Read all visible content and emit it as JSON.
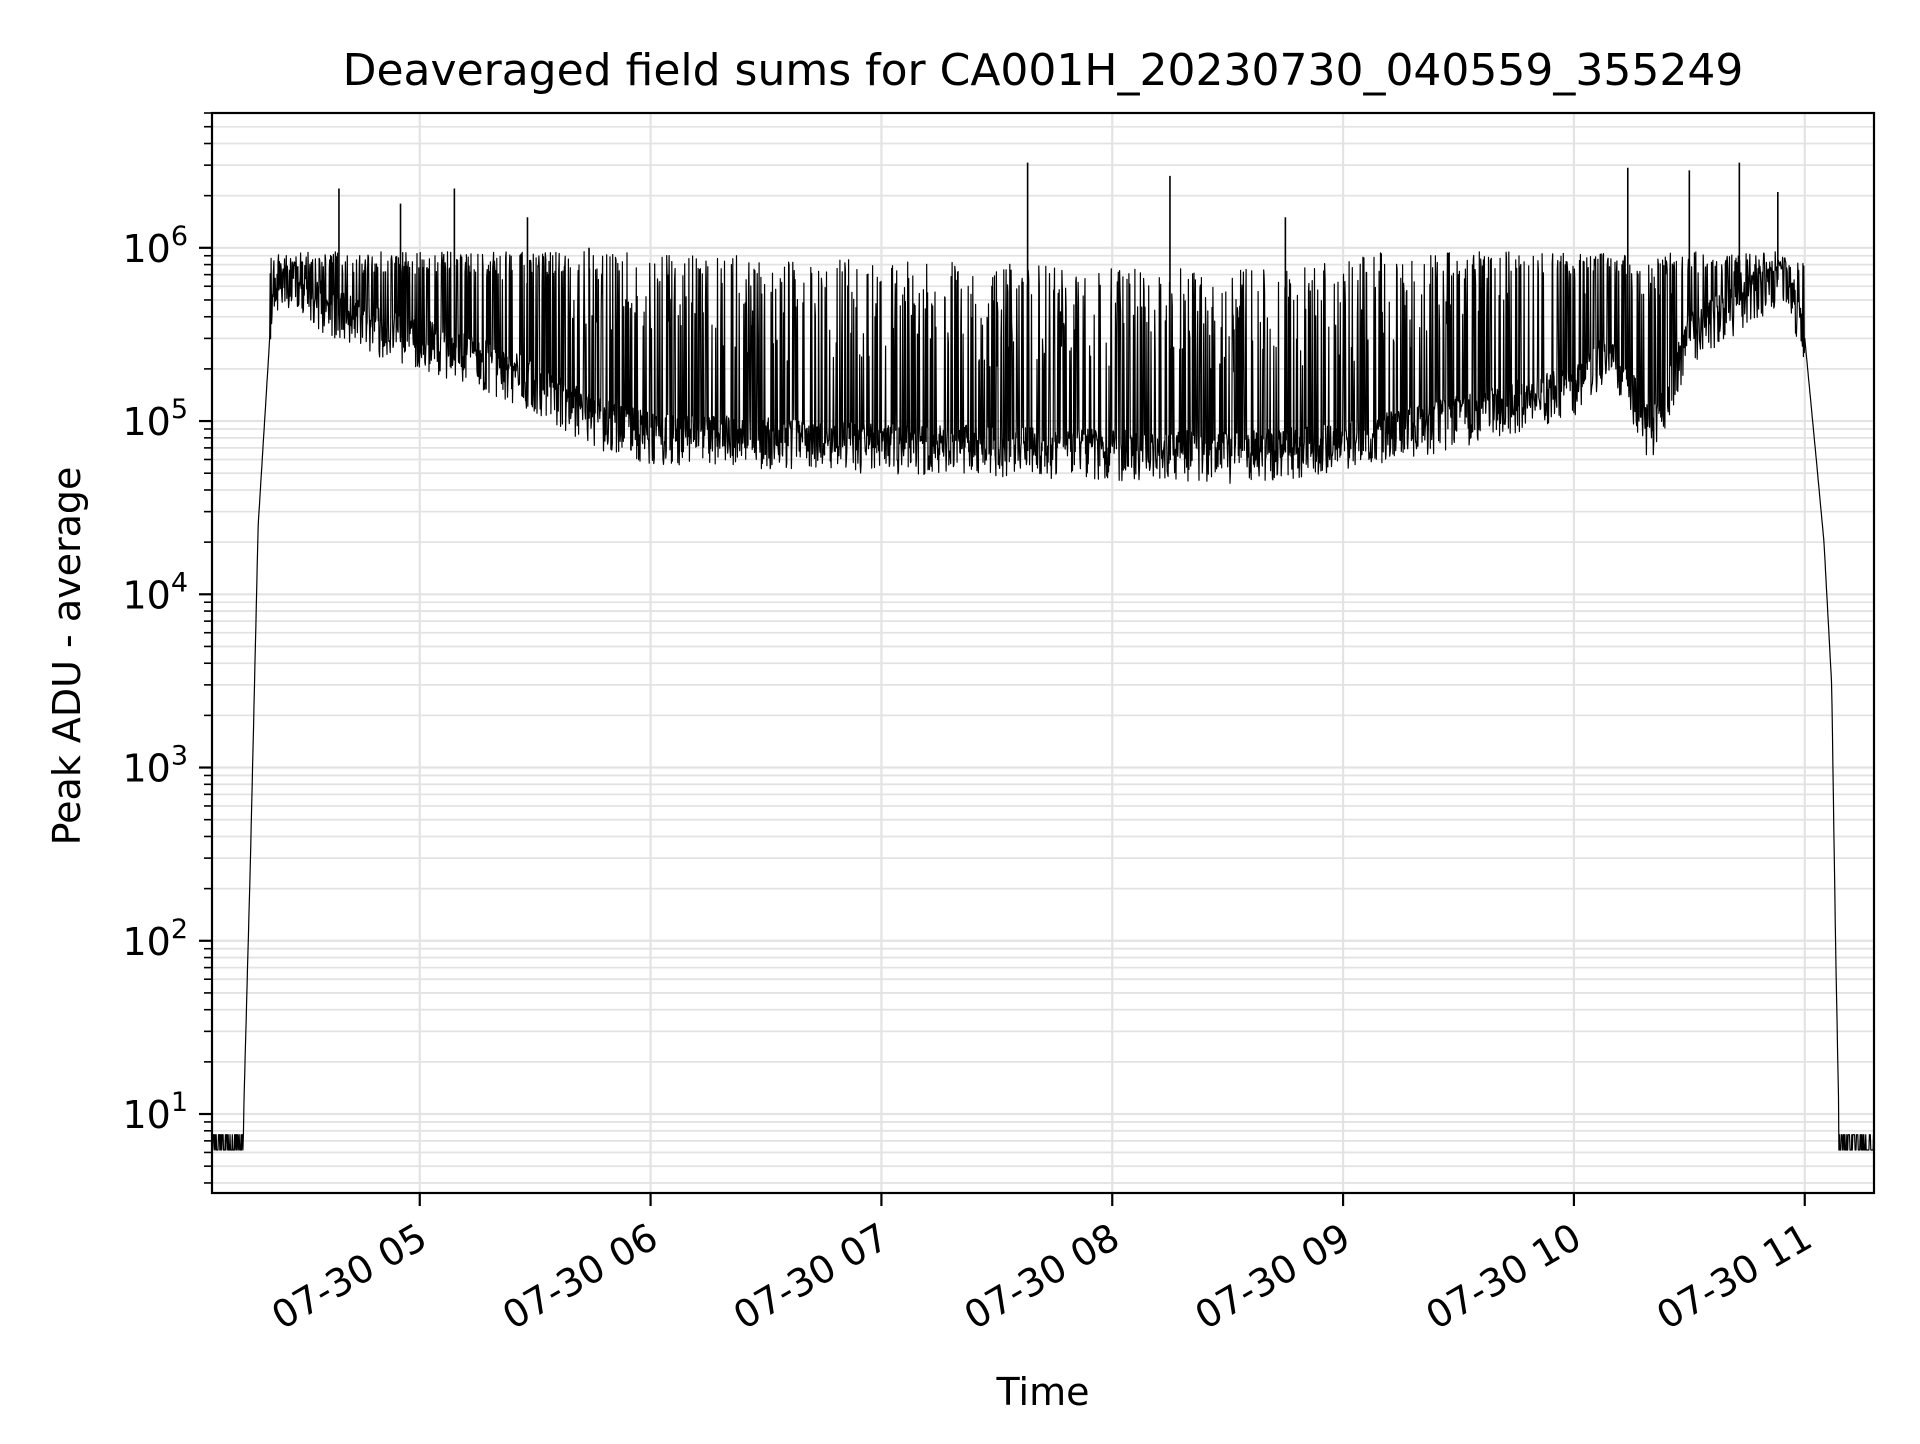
{
  "chart_data": {
    "type": "line",
    "title": "Deaveraged field sums for CA001H_20230730_040559_355249",
    "xlabel": "Time",
    "ylabel": "Peak ADU - average",
    "yscale": "log",
    "x_range": [
      "2023-07-30 04:06",
      "2023-07-30 11:18"
    ],
    "ylim": [
      3.5,
      6000000
    ],
    "grid": true,
    "x_ticks": [
      {
        "label": "07-30 05",
        "value": "2023-07-30 05:00"
      },
      {
        "label": "07-30 06",
        "value": "2023-07-30 06:00"
      },
      {
        "label": "07-30 07",
        "value": "2023-07-30 07:00"
      },
      {
        "label": "07-30 08",
        "value": "2023-07-30 08:00"
      },
      {
        "label": "07-30 09",
        "value": "2023-07-30 09:00"
      },
      {
        "label": "07-30 10",
        "value": "2023-07-30 10:00"
      },
      {
        "label": "07-30 11",
        "value": "2023-07-30 11:00"
      }
    ],
    "y_ticks": [
      {
        "base": "10",
        "exp": "1",
        "value": 10
      },
      {
        "base": "10",
        "exp": "2",
        "value": 100
      },
      {
        "base": "10",
        "exp": "3",
        "value": 1000
      },
      {
        "base": "10",
        "exp": "4",
        "value": 10000
      },
      {
        "base": "10",
        "exp": "5",
        "value": 100000
      },
      {
        "base": "10",
        "exp": "6",
        "value": 1000000
      }
    ],
    "series": [
      {
        "color": "#000000",
        "points": [
          [
            "2023-07-30 04:06",
            6.5
          ],
          [
            "2023-07-30 04:14",
            6.5
          ],
          [
            "2023-07-30 04:16",
            300
          ],
          [
            "2023-07-30 04:18",
            25000
          ],
          [
            "2023-07-30 04:21",
            300000
          ],
          [
            "2023-07-30 04:23",
            600000
          ],
          [
            "2023-07-30 04:30",
            600000
          ],
          [
            "2023-07-30 04:35",
            450000
          ],
          [
            "2023-07-30 04:45",
            350000
          ],
          [
            "2023-07-30 05:00",
            280000
          ],
          [
            "2023-07-30 05:15",
            220000
          ],
          [
            "2023-07-30 05:30",
            160000
          ],
          [
            "2023-07-30 05:45",
            100000
          ],
          [
            "2023-07-30 06:00",
            80000
          ],
          [
            "2023-07-30 06:30",
            75000
          ],
          [
            "2023-07-30 07:00",
            70000
          ],
          [
            "2023-07-30 07:30",
            68000
          ],
          [
            "2023-07-30 08:00",
            65000
          ],
          [
            "2023-07-30 08:30",
            62000
          ],
          [
            "2023-07-30 09:00",
            70000
          ],
          [
            "2023-07-30 09:30",
            100000
          ],
          [
            "2023-07-30 10:00",
            150000
          ],
          [
            "2023-07-30 10:10",
            250000
          ],
          [
            "2023-07-30 10:20",
            80000
          ],
          [
            "2023-07-30 10:30",
            300000
          ],
          [
            "2023-07-30 10:45",
            500000
          ],
          [
            "2023-07-30 10:55",
            700000
          ],
          [
            "2023-07-30 11:00",
            300000
          ],
          [
            "2023-07-30 11:03",
            60000
          ],
          [
            "2023-07-30 11:05",
            20000
          ],
          [
            "2023-07-30 11:07",
            3000
          ],
          [
            "2023-07-30 11:08",
            100
          ],
          [
            "2023-07-30 11:09",
            6.5
          ],
          [
            "2023-07-30 11:18",
            6.5
          ]
        ],
        "peaks": [
          [
            "2023-07-30 04:39",
            2200000
          ],
          [
            "2023-07-30 04:55",
            1800000
          ],
          [
            "2023-07-30 05:09",
            2200000
          ],
          [
            "2023-07-30 05:28",
            1500000
          ],
          [
            "2023-07-30 05:44",
            1000000
          ],
          [
            "2023-07-30 07:38",
            3100000
          ],
          [
            "2023-07-30 08:15",
            2600000
          ],
          [
            "2023-07-30 08:45",
            1500000
          ],
          [
            "2023-07-30 10:14",
            2900000
          ],
          [
            "2023-07-30 10:30",
            2800000
          ],
          [
            "2023-07-30 10:43",
            3100000
          ],
          [
            "2023-07-30 10:53",
            2100000
          ]
        ]
      }
    ]
  }
}
